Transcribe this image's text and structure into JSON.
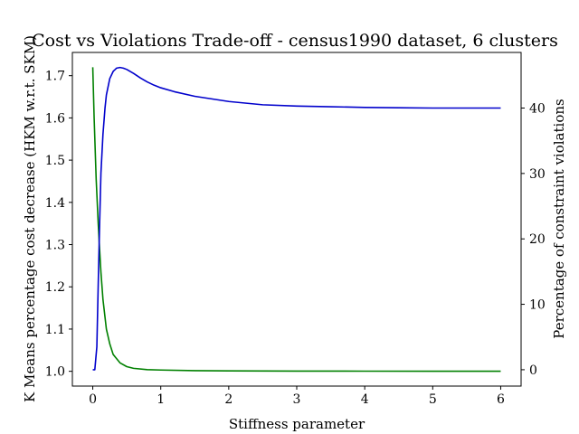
{
  "chart_data": {
    "type": "line",
    "title": "Cost vs Violations Trade-off - census1990 dataset, 6 clusters",
    "xlabel": "Stiffness parameter",
    "ylabel_left": "K Means percentage cost decrease (HKM w.r.t. SKM)",
    "ylabel_right": "Percentage of constraint violations",
    "xlim": [
      -0.3,
      6.3
    ],
    "ylim_left": [
      0.965,
      1.755
    ],
    "ylim_right": [
      -2.5,
      48.5
    ],
    "x_ticks": [
      "0",
      "1",
      "2",
      "3",
      "4",
      "5",
      "6"
    ],
    "y_ticks_left": [
      "1.0",
      "1.1",
      "1.2",
      "1.3",
      "1.4",
      "1.5",
      "1.6",
      "1.7"
    ],
    "y_ticks_right": [
      "0",
      "10",
      "20",
      "30",
      "40"
    ],
    "grid": false,
    "colors": {
      "left_axis": "#008000",
      "right_axis": "#0000cc"
    },
    "series": [
      {
        "axis": "left",
        "color": "#008000",
        "x": [
          0,
          0.02,
          0.05,
          0.08,
          0.1,
          0.12,
          0.15,
          0.2,
          0.25,
          0.3,
          0.4,
          0.5,
          0.6,
          0.8,
          1.0,
          1.5,
          2.0,
          3.0,
          4.0,
          5.0,
          6.0
        ],
        "y": [
          1.72,
          1.6,
          1.455,
          1.35,
          1.29,
          1.235,
          1.17,
          1.1,
          1.065,
          1.04,
          1.02,
          1.011,
          1.007,
          1.004,
          1.003,
          1.0015,
          1.001,
          1.0005,
          1.0003,
          1.0002,
          1.0001
        ]
      },
      {
        "axis": "right",
        "color": "#0000cc",
        "x": [
          0,
          0.03,
          0.06,
          0.08,
          0.1,
          0.12,
          0.15,
          0.18,
          0.2,
          0.25,
          0.3,
          0.35,
          0.4,
          0.45,
          0.5,
          0.6,
          0.7,
          0.8,
          0.9,
          1.0,
          1.2,
          1.5,
          2.0,
          2.5,
          3.0,
          3.5,
          4.0,
          4.5,
          5.0,
          5.5,
          6.0
        ],
        "y": [
          0,
          0,
          3.5,
          13,
          22,
          30,
          36,
          40,
          42,
          44.5,
          45.6,
          46.1,
          46.2,
          46.1,
          45.9,
          45.3,
          44.6,
          44,
          43.5,
          43.1,
          42.5,
          41.8,
          41,
          40.5,
          40.3,
          40.2,
          40.1,
          40.05,
          40,
          40,
          40
        ]
      }
    ]
  }
}
